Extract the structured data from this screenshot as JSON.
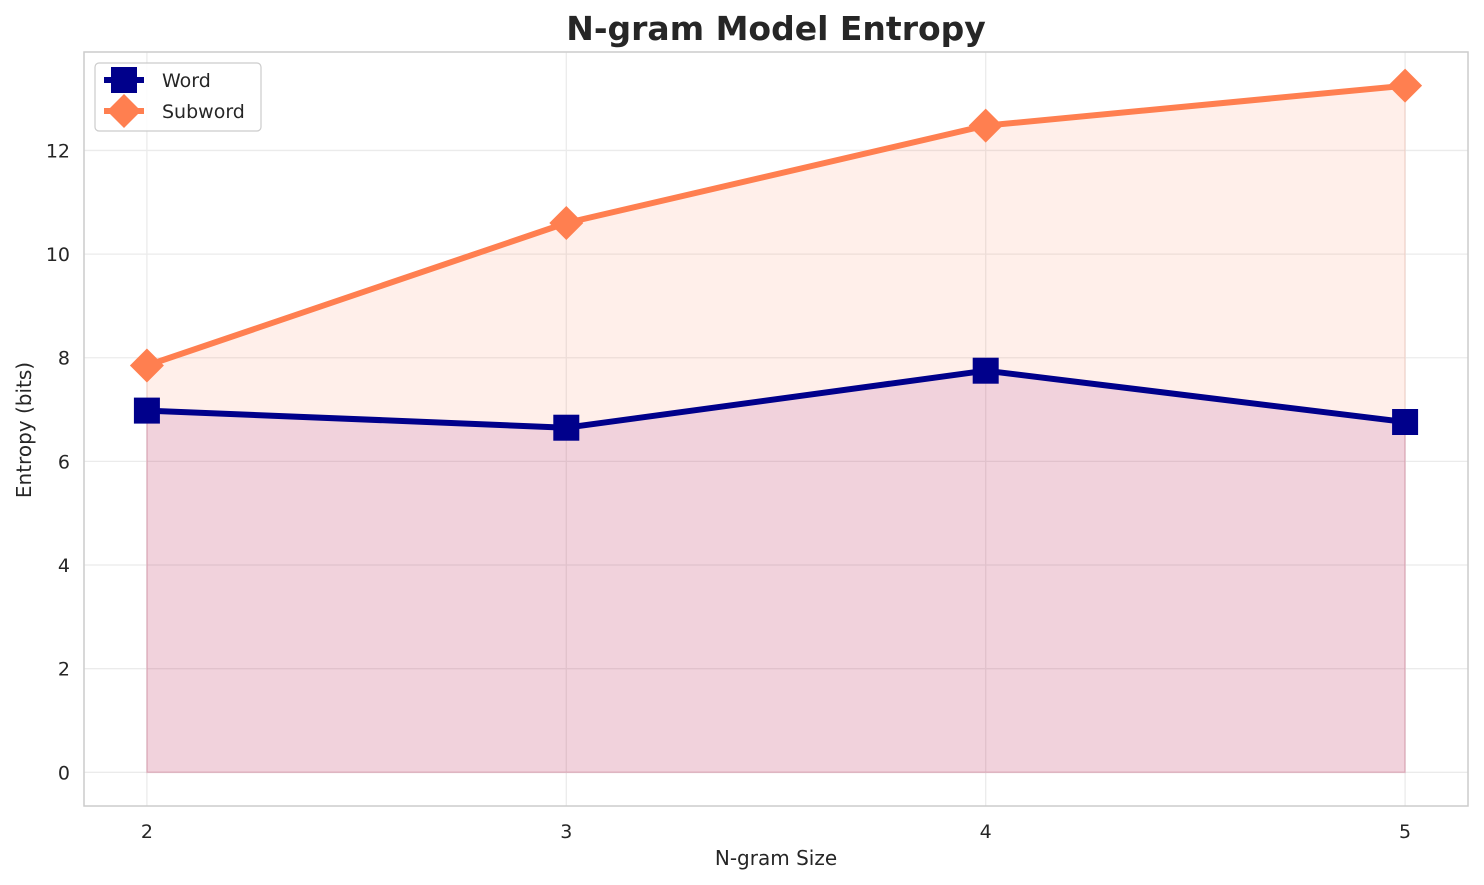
{
  "chart_data": {
    "type": "line",
    "title": "N-gram Model Entropy",
    "xlabel": "N-gram Size",
    "ylabel": "Entropy (bits)",
    "x": [
      2,
      3,
      4,
      5
    ],
    "x_tick_labels": [
      "2",
      "3",
      "4",
      "5"
    ],
    "xlim": [
      1.85,
      5.15
    ],
    "ylim": [
      -0.65,
      13.9
    ],
    "y_ticks": [
      0,
      2,
      4,
      6,
      8,
      10,
      12
    ],
    "y_tick_labels": [
      "0",
      "2",
      "4",
      "6",
      "8",
      "10",
      "12"
    ],
    "grid": true,
    "legend_position": "top-left",
    "series": [
      {
        "name": "Word",
        "values": [
          6.98,
          6.65,
          7.75,
          6.76
        ],
        "color": "#00008b",
        "marker": "square",
        "fill": "rgba(128,0,128,0.13)"
      },
      {
        "name": "Subword",
        "values": [
          7.85,
          10.6,
          12.48,
          13.25
        ],
        "color": "#ff7f50",
        "marker": "diamond",
        "fill": "rgba(255,127,80,0.12)"
      }
    ]
  }
}
